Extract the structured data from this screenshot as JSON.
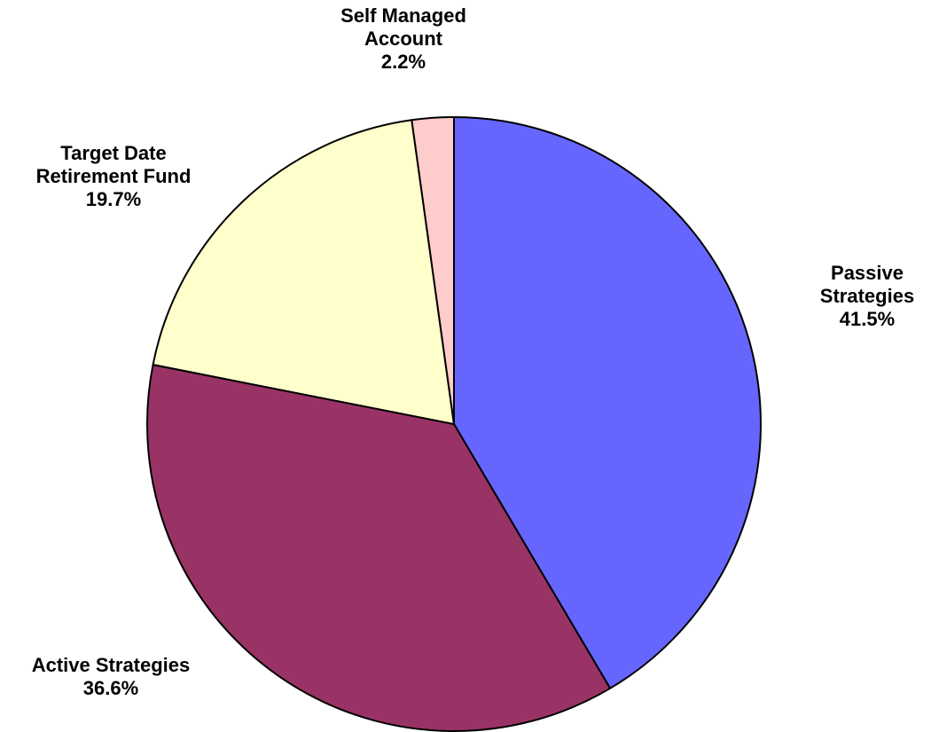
{
  "chart_data": {
    "type": "pie",
    "categories": [
      "Passive Strategies",
      "Active Strategies",
      "Target Date Retirement Fund",
      "Self Managed Account"
    ],
    "values": [
      41.5,
      36.6,
      19.7,
      2.2
    ],
    "value_labels": [
      "41.5%",
      "36.6%",
      "19.7%",
      "2.2%"
    ],
    "colors": [
      "#6666ff",
      "#993366",
      "#ffffcc",
      "#ffcccc"
    ]
  }
}
